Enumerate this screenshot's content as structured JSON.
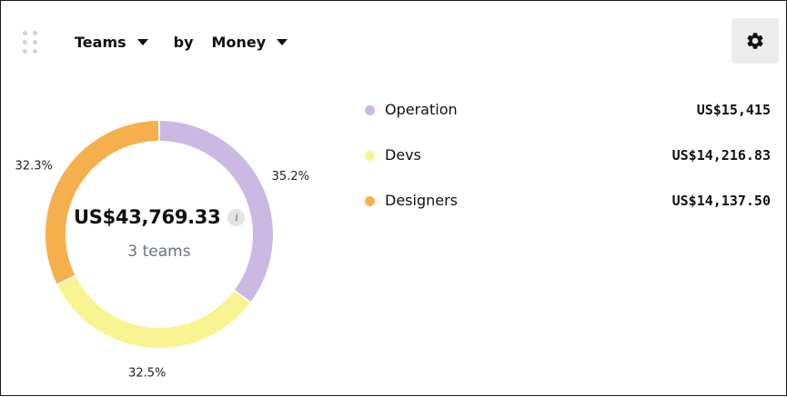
{
  "header": {
    "group_by": "Teams",
    "by_label": "by",
    "metric": "Money"
  },
  "icons": {
    "drag": "drag-handle-icon",
    "settings": "gear-icon",
    "info": "info-icon",
    "dropdown": "caret-down-icon"
  },
  "center": {
    "total": "US$43,769.33",
    "info_glyph": "i",
    "subtitle": "3 teams"
  },
  "chart_data": {
    "type": "pie",
    "variant": "donut",
    "categories": [
      "Operation",
      "Devs",
      "Designers"
    ],
    "values": [
      15415,
      14216.83,
      14137.5
    ],
    "percent_labels": [
      "35.2%",
      "32.5%",
      "32.3%"
    ],
    "value_labels": [
      "US$15,415",
      "US$14,216.83",
      "US$14,137.50"
    ],
    "colors": [
      "#cbb9e4",
      "#f7f491",
      "#f5b04d"
    ],
    "legend_placement": "right"
  }
}
